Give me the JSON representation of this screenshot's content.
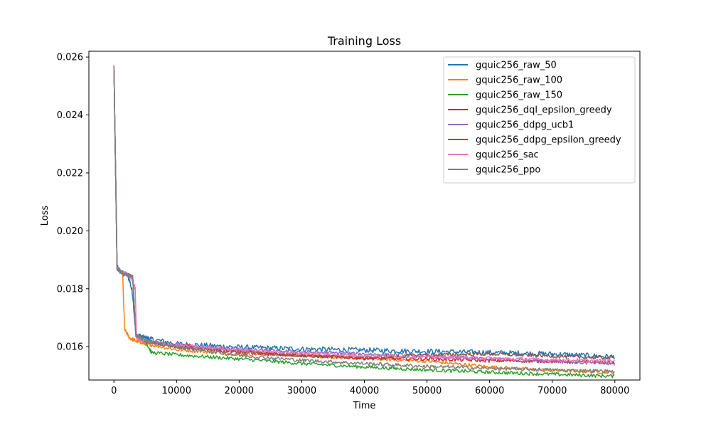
{
  "chart_data": {
    "type": "line",
    "title": "Training Loss",
    "xlabel": "Time",
    "ylabel": "Loss",
    "xlim": [
      -4000,
      84000
    ],
    "ylim": [
      0.01485,
      0.0262
    ],
    "xticks": [
      0,
      10000,
      20000,
      30000,
      40000,
      50000,
      60000,
      70000,
      80000
    ],
    "xtick_labels": [
      "0",
      "10000",
      "20000",
      "30000",
      "40000",
      "50000",
      "60000",
      "70000",
      "80000"
    ],
    "yticks": [
      0.016,
      0.018,
      0.02,
      0.022,
      0.024,
      0.026
    ],
    "ytick_labels": [
      "0.016",
      "0.018",
      "0.020",
      "0.022",
      "0.024",
      "0.026"
    ],
    "grid": false,
    "legend_position": "upper right",
    "series": [
      {
        "name": "gquic256_raw_50",
        "color": "#1f77b4",
        "x": [
          0,
          300,
          500,
          1000,
          1500,
          2000,
          2500,
          3000,
          3500,
          5000,
          10000,
          20000,
          30000,
          40000,
          50000,
          60000,
          70000,
          80000
        ],
        "y": [
          0.0257,
          0.0218,
          0.0188,
          0.0186,
          0.0185,
          0.0185,
          0.0183,
          0.0178,
          0.0164,
          0.0163,
          0.0161,
          0.01598,
          0.01592,
          0.01588,
          0.01584,
          0.0158,
          0.01575,
          0.01565
        ]
      },
      {
        "name": "gquic256_raw_100",
        "color": "#ff7f0e",
        "x": [
          0,
          300,
          500,
          1000,
          1400,
          1700,
          2500,
          3500,
          5000,
          10000,
          20000,
          30000,
          40000,
          50000,
          60000,
          70000,
          80000
        ],
        "y": [
          0.0257,
          0.0215,
          0.0187,
          0.0186,
          0.0185,
          0.0166,
          0.0163,
          0.0162,
          0.0161,
          0.0159,
          0.01575,
          0.0157,
          0.0156,
          0.0155,
          0.0153,
          0.01518,
          0.01512
        ]
      },
      {
        "name": "gquic256_raw_150",
        "color": "#2ca02c",
        "x": [
          0,
          300,
          500,
          1000,
          2000,
          3000,
          3500,
          5000,
          6000,
          10000,
          20000,
          30000,
          40000,
          50000,
          60000,
          70000,
          80000
        ],
        "y": [
          0.0257,
          0.0216,
          0.0187,
          0.0186,
          0.0185,
          0.0184,
          0.0164,
          0.0162,
          0.0158,
          0.01572,
          0.01558,
          0.01542,
          0.0153,
          0.0152,
          0.01512,
          0.01505,
          0.01498
        ]
      },
      {
        "name": "gquic256_dql_epsilon_greedy",
        "color": "#d62728",
        "x": [
          0,
          300,
          500,
          1000,
          2000,
          3000,
          3500,
          5000,
          10000,
          20000,
          30000,
          40000,
          50000,
          60000,
          70000,
          80000
        ],
        "y": [
          0.0257,
          0.0216,
          0.0187,
          0.0186,
          0.0185,
          0.0184,
          0.0164,
          0.0162,
          0.01605,
          0.01585,
          0.0157,
          0.0156,
          0.01558,
          0.01552,
          0.0155,
          0.01545
        ]
      },
      {
        "name": "gquic256_ddpg_ucb1",
        "color": "#9467bd",
        "x": [
          0,
          300,
          500,
          1000,
          2000,
          3000,
          3500,
          5000,
          10000,
          20000,
          30000,
          40000,
          50000,
          60000,
          70000,
          80000
        ],
        "y": [
          0.0257,
          0.0216,
          0.0187,
          0.0186,
          0.0185,
          0.0184,
          0.0164,
          0.0162,
          0.01605,
          0.0159,
          0.01582,
          0.01575,
          0.01568,
          0.01558,
          0.0155,
          0.0154
        ]
      },
      {
        "name": "gquic256_ddpg_epsilon_greedy",
        "color": "#8c564b",
        "x": [
          0,
          300,
          500,
          1000,
          2000,
          3000,
          3500,
          5000,
          10000,
          20000,
          30000,
          40000,
          50000,
          60000,
          70000,
          80000
        ],
        "y": [
          0.0257,
          0.0216,
          0.0187,
          0.0186,
          0.0185,
          0.0184,
          0.0164,
          0.0162,
          0.016,
          0.0158,
          0.0157,
          0.01562,
          0.01572,
          0.01575,
          0.01568,
          0.0156
        ]
      },
      {
        "name": "gquic256_sac",
        "color": "#e377c2",
        "x": [
          0,
          300,
          500,
          1000,
          2000,
          3000,
          3400,
          3600,
          5000,
          10000,
          20000,
          30000,
          40000,
          50000,
          60000,
          70000,
          80000
        ],
        "y": [
          0.0257,
          0.0216,
          0.0187,
          0.0186,
          0.0185,
          0.0183,
          0.018,
          0.0163,
          0.0162,
          0.01605,
          0.0159,
          0.01578,
          0.0157,
          0.01565,
          0.0156,
          0.01555,
          0.0155
        ]
      },
      {
        "name": "gquic256_ppo",
        "color": "#7f7f7f",
        "x": [
          0,
          300,
          500,
          1000,
          2000,
          3000,
          3500,
          5000,
          10000,
          20000,
          30000,
          40000,
          50000,
          60000,
          70000,
          80000
        ],
        "y": [
          0.0257,
          0.0216,
          0.0187,
          0.0186,
          0.0185,
          0.0184,
          0.0164,
          0.0162,
          0.016,
          0.0157,
          0.01553,
          0.01542,
          0.01532,
          0.01525,
          0.0152,
          0.01515
        ]
      }
    ]
  }
}
